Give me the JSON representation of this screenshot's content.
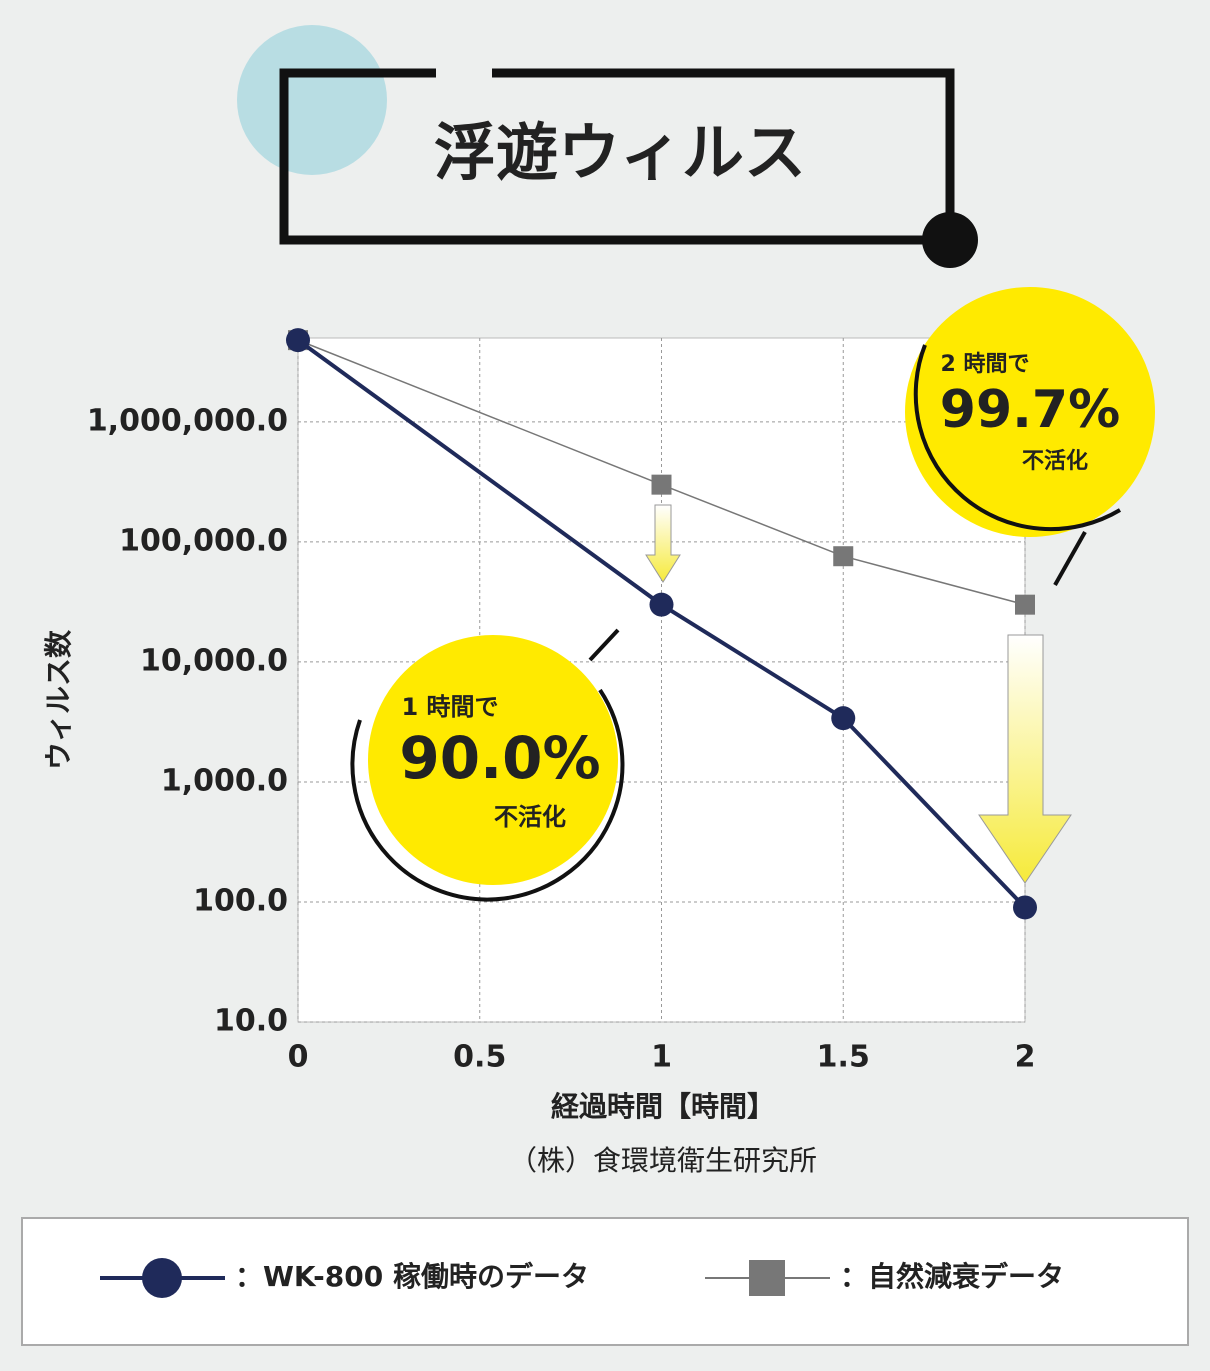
{
  "chart_data": {
    "type": "line",
    "title": "浮遊ウィルス",
    "x_label": "経過時間【時間】",
    "y_label": "ウィルス数",
    "source": "（株）食環境衛生研究所",
    "x": [
      0,
      1,
      1.5,
      2
    ],
    "xlim": [
      0,
      2
    ],
    "xticks": [
      0,
      0.5,
      1,
      1.5,
      2
    ],
    "ylim": [
      10,
      5000000
    ],
    "log_y": true,
    "grid": true,
    "yticks": [
      {
        "value": 10,
        "label": "10.0"
      },
      {
        "value": 100,
        "label": "100.0"
      },
      {
        "value": 1000,
        "label": "1,000.0"
      },
      {
        "value": 10000,
        "label": "10,000.0"
      },
      {
        "value": 100000,
        "label": "100,000.0"
      },
      {
        "value": 1000000,
        "label": "1,000,000.0"
      }
    ],
    "series": [
      {
        "name": "：WK-800 稼働時のデータ",
        "color": "#1f2a5a",
        "marker": "circle",
        "values": [
          4800000,
          30000,
          3400,
          90
        ]
      },
      {
        "name": "：自然減衰データ",
        "color": "#777777",
        "marker": "square",
        "values": [
          4800000,
          300000,
          76000,
          30000
        ]
      }
    ],
    "callouts": [
      {
        "heading": "1 時間で",
        "value": "90.0%",
        "note": "不活化"
      },
      {
        "heading": "2 時間で",
        "value": "99.7%",
        "note": "不活化"
      }
    ]
  }
}
